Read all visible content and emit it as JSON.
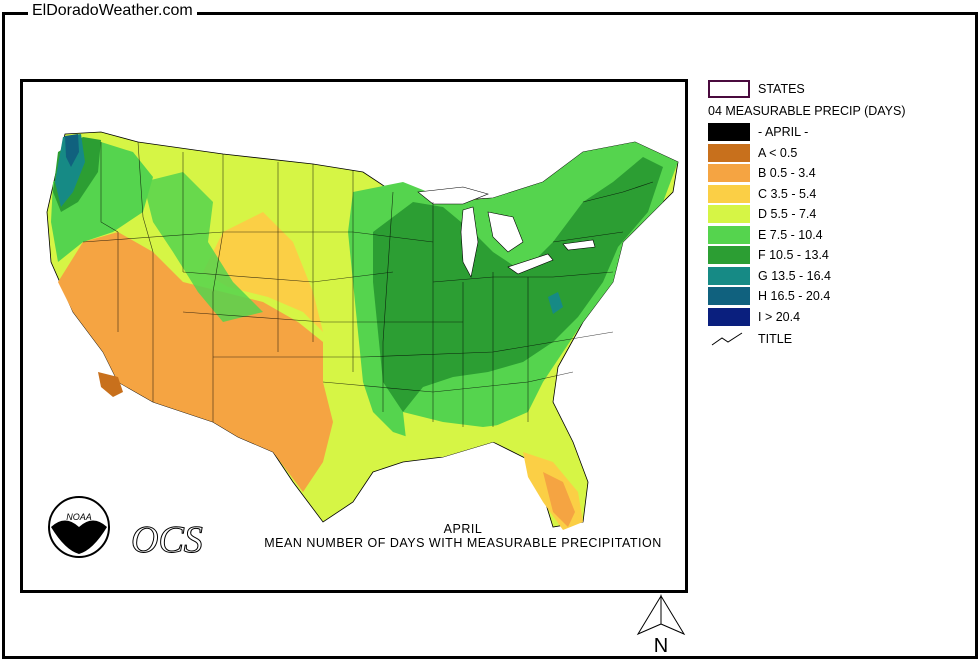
{
  "site_title": "ElDoradoWeather.com",
  "caption": {
    "month": "APRIL",
    "description": "MEAN NUMBER OF DAYS WITH MEASURABLE PRECIPITATION"
  },
  "logos": {
    "noaa": "NOAA",
    "ocs": "OCS"
  },
  "legend": {
    "states_label": "STATES",
    "heading": "04 MEASURABLE PRECIP (DAYS)",
    "items": [
      {
        "label": "- APRIL -",
        "color": "#000000"
      },
      {
        "label": "A < 0.5",
        "color": "#c8701c"
      },
      {
        "label": "B 0.5 - 3.4",
        "color": "#f5a442"
      },
      {
        "label": "C 3.5 - 5.4",
        "color": "#fbcf45"
      },
      {
        "label": "D 5.5 - 7.4",
        "color": "#d6f545"
      },
      {
        "label": "E 7.5 - 10.4",
        "color": "#55d44e"
      },
      {
        "label": "F 10.5 - 13.4",
        "color": "#2c9e33"
      },
      {
        "label": "G 13.5 - 16.4",
        "color": "#168a85"
      },
      {
        "label": "H 16.5 - 20.4",
        "color": "#10617e"
      },
      {
        "label": "I > 20.4",
        "color": "#0a1f7e"
      }
    ],
    "title_label": "TITLE"
  },
  "north_label": "N"
}
